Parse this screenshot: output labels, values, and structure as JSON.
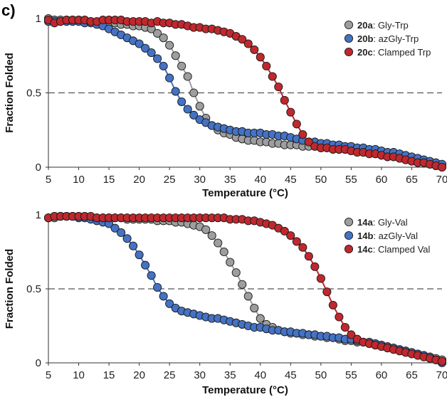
{
  "panel_label": "c)",
  "chart_data": [
    {
      "type": "scatter",
      "xlabel": "Temperature (°C)",
      "ylabel": "Fraction Folded",
      "xlim": [
        5,
        70
      ],
      "ylim": [
        0,
        1
      ],
      "xticks": [
        "5",
        "10",
        "15",
        "20",
        "25",
        "30",
        "35",
        "40",
        "45",
        "50",
        "55",
        "60",
        "65",
        "70"
      ],
      "yticks": [
        "0",
        "0.5",
        "1"
      ],
      "reference_line": 0.5,
      "legend_position": "top-right",
      "series": [
        {
          "name": "Gly-Trp",
          "id": "20a",
          "color": "#9e9e9e",
          "x": [
            5,
            6,
            7,
            8,
            9,
            10,
            11,
            12,
            13,
            14,
            15,
            16,
            17,
            18,
            19,
            20,
            21,
            22,
            23,
            24,
            25,
            26,
            27,
            28,
            29,
            30,
            31,
            32,
            33,
            34,
            35,
            36,
            37,
            38,
            39,
            40,
            41,
            42,
            43,
            44,
            45,
            46,
            47,
            48,
            49,
            50,
            51,
            52,
            53,
            54,
            55,
            56,
            57,
            58,
            59,
            60,
            61,
            62,
            63,
            64,
            65,
            66,
            67,
            68,
            69,
            70
          ],
          "y": [
            1,
            0.99,
            0.99,
            0.99,
            0.99,
            0.99,
            0.98,
            0.98,
            0.97,
            0.97,
            0.97,
            0.97,
            0.96,
            0.96,
            0.95,
            0.95,
            0.94,
            0.93,
            0.9,
            0.87,
            0.82,
            0.75,
            0.68,
            0.61,
            0.5,
            0.41,
            0.33,
            0.28,
            0.25,
            0.23,
            0.22,
            0.2,
            0.19,
            0.18,
            0.18,
            0.17,
            0.17,
            0.16,
            0.16,
            0.15,
            0.15,
            0.15,
            0.14,
            0.14,
            0.14,
            0.13,
            0.13,
            0.13,
            0.12,
            0.12,
            0.11,
            0.11,
            0.1,
            0.1,
            0.09,
            0.08,
            0.07,
            0.07,
            0.06,
            0.05,
            0.05,
            0.04,
            0.03,
            0.02,
            0.01,
            0
          ]
        },
        {
          "name": "azGly-Trp",
          "id": "20b",
          "color": "#4472c4",
          "x": [
            5,
            6,
            7,
            8,
            9,
            10,
            11,
            12,
            13,
            14,
            15,
            16,
            17,
            18,
            19,
            20,
            21,
            22,
            23,
            24,
            25,
            26,
            27,
            28,
            29,
            30,
            31,
            32,
            33,
            34,
            35,
            36,
            37,
            38,
            39,
            40,
            41,
            42,
            43,
            44,
            45,
            46,
            47,
            48,
            49,
            50,
            51,
            52,
            53,
            54,
            55,
            56,
            57,
            58,
            59,
            60,
            61,
            62,
            63,
            64,
            65,
            66,
            67,
            68,
            69,
            70
          ],
          "y": [
            0.98,
            0.98,
            0.98,
            0.98,
            0.98,
            0.98,
            0.97,
            0.97,
            0.96,
            0.95,
            0.93,
            0.91,
            0.89,
            0.87,
            0.85,
            0.83,
            0.8,
            0.77,
            0.73,
            0.68,
            0.6,
            0.51,
            0.44,
            0.39,
            0.35,
            0.32,
            0.3,
            0.28,
            0.27,
            0.26,
            0.25,
            0.24,
            0.24,
            0.23,
            0.23,
            0.23,
            0.22,
            0.22,
            0.21,
            0.21,
            0.2,
            0.19,
            0.18,
            0.17,
            0.17,
            0.16,
            0.16,
            0.15,
            0.15,
            0.14,
            0.14,
            0.13,
            0.13,
            0.12,
            0.12,
            0.11,
            0.1,
            0.1,
            0.09,
            0.08,
            0.07,
            0.06,
            0.05,
            0.04,
            0.03,
            0.02
          ]
        },
        {
          "name": "Clamped Trp",
          "id": "20c",
          "color": "#c0282d",
          "x": [
            5,
            6,
            7,
            8,
            9,
            10,
            11,
            12,
            13,
            14,
            15,
            16,
            17,
            18,
            19,
            20,
            21,
            22,
            23,
            24,
            25,
            26,
            27,
            28,
            29,
            30,
            31,
            32,
            33,
            34,
            35,
            36,
            37,
            38,
            39,
            40,
            41,
            42,
            43,
            44,
            45,
            46,
            47,
            48,
            49,
            50,
            51,
            52,
            53,
            54,
            55,
            56,
            57,
            58,
            59,
            60,
            61,
            62,
            63,
            64,
            65,
            66,
            67,
            68,
            69,
            70
          ],
          "y": [
            0.99,
            0.97,
            0.98,
            0.99,
            0.99,
            0.99,
            0.99,
            0.98,
            0.98,
            0.99,
            0.99,
            0.99,
            0.99,
            0.98,
            0.98,
            0.98,
            0.98,
            0.97,
            0.98,
            0.97,
            0.97,
            0.96,
            0.96,
            0.95,
            0.94,
            0.94,
            0.93,
            0.93,
            0.92,
            0.91,
            0.9,
            0.88,
            0.86,
            0.83,
            0.79,
            0.74,
            0.68,
            0.61,
            0.54,
            0.45,
            0.37,
            0.29,
            0.22,
            0.17,
            0.14,
            0.13,
            0.13,
            0.12,
            0.12,
            0.12,
            0.11,
            0.1,
            0.1,
            0.09,
            0.09,
            0.08,
            0.07,
            0.07,
            0.06,
            0.05,
            0.04,
            0.03,
            0.03,
            0.02,
            0.01,
            0
          ]
        }
      ]
    },
    {
      "type": "scatter",
      "xlabel": "Temperature (°C)",
      "ylabel": "Fraction Folded",
      "xlim": [
        5,
        70
      ],
      "ylim": [
        0,
        1
      ],
      "xticks": [
        "5",
        "10",
        "15",
        "20",
        "25",
        "30",
        "35",
        "40",
        "45",
        "50",
        "55",
        "60",
        "65",
        "70"
      ],
      "yticks": [
        "0",
        "0.5",
        "1"
      ],
      "reference_line": 0.5,
      "legend_position": "top-right",
      "series": [
        {
          "name": "Gly-Val",
          "id": "14a",
          "color": "#9e9e9e",
          "x": [
            5,
            6,
            7,
            8,
            9,
            10,
            11,
            12,
            13,
            14,
            15,
            16,
            17,
            18,
            19,
            20,
            21,
            22,
            23,
            24,
            25,
            26,
            27,
            28,
            29,
            30,
            31,
            32,
            33,
            34,
            35,
            36,
            37,
            38,
            39,
            40,
            41,
            42,
            43,
            44,
            45,
            46,
            47,
            48,
            49,
            50,
            51,
            52,
            53,
            54,
            55,
            56,
            57,
            58,
            59,
            60,
            61,
            62,
            63,
            64,
            65,
            66,
            67,
            68,
            69,
            70
          ],
          "y": [
            0.98,
            0.98,
            0.99,
            0.99,
            0.99,
            0.99,
            0.99,
            0.98,
            0.98,
            0.98,
            0.98,
            0.98,
            0.98,
            0.97,
            0.97,
            0.97,
            0.97,
            0.97,
            0.96,
            0.96,
            0.96,
            0.95,
            0.95,
            0.94,
            0.93,
            0.92,
            0.9,
            0.86,
            0.81,
            0.75,
            0.68,
            0.61,
            0.53,
            0.45,
            0.37,
            0.3,
            0.26,
            0.24,
            0.22,
            0.21,
            0.2,
            0.2,
            0.19,
            0.19,
            0.18,
            0.18,
            0.17,
            0.17,
            0.16,
            0.15,
            0.15,
            0.14,
            0.14,
            0.13,
            0.12,
            0.12,
            0.11,
            0.1,
            0.09,
            0.08,
            0.07,
            0.06,
            0.05,
            0.04,
            0.03,
            0.02
          ]
        },
        {
          "name": "azGly-Val",
          "id": "14b",
          "color": "#4472c4",
          "x": [
            5,
            6,
            7,
            8,
            9,
            10,
            11,
            12,
            13,
            14,
            15,
            16,
            17,
            18,
            19,
            20,
            21,
            22,
            23,
            24,
            25,
            26,
            27,
            28,
            29,
            30,
            31,
            32,
            33,
            34,
            35,
            36,
            37,
            38,
            39,
            40,
            41,
            42,
            43,
            44,
            45,
            46,
            47,
            48,
            49,
            50,
            51,
            52,
            53,
            54,
            55,
            56,
            57,
            58,
            59,
            60,
            61,
            62,
            63,
            64,
            65,
            66,
            67,
            68,
            69,
            70
          ],
          "y": [
            0.98,
            0.99,
            0.99,
            0.99,
            0.99,
            0.98,
            0.98,
            0.97,
            0.96,
            0.95,
            0.94,
            0.91,
            0.88,
            0.84,
            0.79,
            0.73,
            0.66,
            0.59,
            0.51,
            0.45,
            0.4,
            0.37,
            0.35,
            0.34,
            0.33,
            0.32,
            0.31,
            0.3,
            0.3,
            0.29,
            0.28,
            0.27,
            0.26,
            0.25,
            0.24,
            0.24,
            0.23,
            0.22,
            0.22,
            0.21,
            0.21,
            0.2,
            0.2,
            0.19,
            0.19,
            0.18,
            0.18,
            0.17,
            0.17,
            0.16,
            0.16,
            0.15,
            0.14,
            0.14,
            0.13,
            0.12,
            0.11,
            0.1,
            0.09,
            0.08,
            0.07,
            0.06,
            0.05,
            0.04,
            0.02,
            0
          ]
        },
        {
          "name": "Clamped Val",
          "id": "14c",
          "color": "#c0282d",
          "x": [
            5,
            6,
            7,
            8,
            9,
            10,
            11,
            12,
            13,
            14,
            15,
            16,
            17,
            18,
            19,
            20,
            21,
            22,
            23,
            24,
            25,
            26,
            27,
            28,
            29,
            30,
            31,
            32,
            33,
            34,
            35,
            36,
            37,
            38,
            39,
            40,
            41,
            42,
            43,
            44,
            45,
            46,
            47,
            48,
            49,
            50,
            51,
            52,
            53,
            54,
            55,
            56,
            57,
            58,
            59,
            60,
            61,
            62,
            63,
            64,
            65,
            66,
            67,
            68,
            69,
            70
          ],
          "y": [
            0.98,
            0.99,
            0.99,
            0.99,
            0.99,
            0.99,
            0.99,
            0.99,
            0.98,
            0.98,
            0.98,
            0.98,
            0.98,
            0.98,
            0.98,
            0.98,
            0.98,
            0.98,
            0.98,
            0.98,
            0.98,
            0.98,
            0.98,
            0.98,
            0.98,
            0.98,
            0.98,
            0.98,
            0.98,
            0.98,
            0.97,
            0.97,
            0.97,
            0.96,
            0.96,
            0.95,
            0.94,
            0.93,
            0.91,
            0.89,
            0.86,
            0.82,
            0.78,
            0.72,
            0.65,
            0.57,
            0.48,
            0.39,
            0.31,
            0.24,
            0.19,
            0.16,
            0.14,
            0.13,
            0.12,
            0.11,
            0.1,
            0.09,
            0.08,
            0.07,
            0.06,
            0.05,
            0.04,
            0.03,
            0.02,
            0.01
          ]
        }
      ]
    }
  ]
}
